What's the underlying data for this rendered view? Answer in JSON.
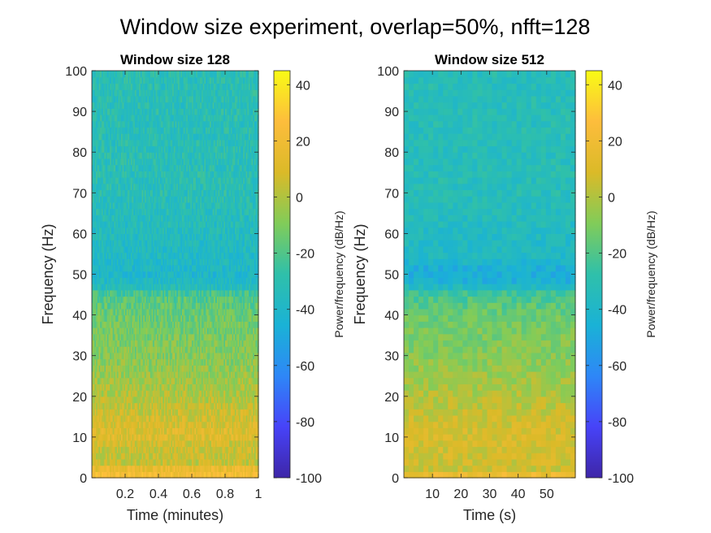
{
  "figure": {
    "title": "Window size experiment, overlap=50%, nfft=128"
  },
  "colormap": {
    "name": "parula",
    "stops": [
      "#3e26a8",
      "#4743f8",
      "#2e87f7",
      "#1ab2d6",
      "#2fc0aa",
      "#81cc59",
      "#dbba28",
      "#fdbd3c",
      "#f9fb15"
    ]
  },
  "chart_data": [
    {
      "type": "heatmap",
      "title": "Window size 128",
      "xlabel": "Time (minutes)",
      "ylabel": "Frequency (Hz)",
      "xlim": [
        0,
        1
      ],
      "ylim": [
        0,
        100
      ],
      "xticks": [
        0.2,
        0.4,
        0.6,
        0.8,
        1
      ],
      "xtick_labels": [
        "0.2",
        "0.4",
        "0.6",
        "0.8",
        "1"
      ],
      "yticks": [
        0,
        10,
        20,
        30,
        40,
        50,
        60,
        70,
        80,
        90,
        100
      ],
      "ytick_labels": [
        "0",
        "10",
        "20",
        "30",
        "40",
        "50",
        "60",
        "70",
        "80",
        "90",
        "100"
      ],
      "grid": false,
      "colorbar": {
        "label": "Power/frequency (dB/Hz)",
        "limits": [
          -100,
          45
        ],
        "ticks": [
          40,
          20,
          0,
          -20,
          -40,
          -60,
          -80,
          -100
        ],
        "tick_labels": [
          "40",
          "20",
          "0",
          "-20",
          "-40",
          "-60",
          "-80",
          "-100"
        ]
      },
      "time_bins": 120,
      "frequency_bins": 65,
      "power_profile_db": [
        {
          "frequency_hz": 0,
          "power_db": 22
        },
        {
          "frequency_hz": 2,
          "power_db": 22
        },
        {
          "frequency_hz": 3,
          "power_db": 4
        },
        {
          "frequency_hz": 8,
          "power_db": 5
        },
        {
          "frequency_hz": 10,
          "power_db": 12
        },
        {
          "frequency_hz": 14,
          "power_db": 8
        },
        {
          "frequency_hz": 20,
          "power_db": 0
        },
        {
          "frequency_hz": 30,
          "power_db": -9
        },
        {
          "frequency_hz": 40,
          "power_db": -14
        },
        {
          "frequency_hz": 45,
          "power_db": -20
        },
        {
          "frequency_hz": 47,
          "power_db": -35
        },
        {
          "frequency_hz": 50,
          "power_db": -40
        },
        {
          "frequency_hz": 55,
          "power_db": -37
        },
        {
          "frequency_hz": 70,
          "power_db": -32
        },
        {
          "frequency_hz": 100,
          "power_db": -32
        }
      ]
    },
    {
      "type": "heatmap",
      "title": "Window size 512",
      "xlabel": "Time (s)",
      "ylabel": "Frequency (Hz)",
      "xlim": [
        0,
        60
      ],
      "ylim": [
        0,
        100
      ],
      "xticks": [
        10,
        20,
        30,
        40,
        50
      ],
      "xtick_labels": [
        "10",
        "20",
        "30",
        "40",
        "50"
      ],
      "yticks": [
        0,
        10,
        20,
        30,
        40,
        50,
        60,
        70,
        80,
        90,
        100
      ],
      "ytick_labels": [
        "0",
        "10",
        "20",
        "30",
        "40",
        "50",
        "60",
        "70",
        "80",
        "90",
        "100"
      ],
      "grid": false,
      "colorbar": {
        "label": "Power/frequency (dB/Hz)",
        "limits": [
          -100,
          45
        ],
        "ticks": [
          40,
          20,
          0,
          -20,
          -40,
          -60,
          -80,
          -100
        ],
        "tick_labels": [
          "40",
          "20",
          "0",
          "-20",
          "-40",
          "-60",
          "-80",
          "-100"
        ]
      },
      "time_bins": 35,
      "frequency_bins": 65,
      "power_profile_db": [
        {
          "frequency_hz": 0,
          "power_db": 18
        },
        {
          "frequency_hz": 1,
          "power_db": 18
        },
        {
          "frequency_hz": 2,
          "power_db": 6
        },
        {
          "frequency_hz": 10,
          "power_db": 8
        },
        {
          "frequency_hz": 13,
          "power_db": 7
        },
        {
          "frequency_hz": 20,
          "power_db": 0
        },
        {
          "frequency_hz": 30,
          "power_db": -8
        },
        {
          "frequency_hz": 40,
          "power_db": -14
        },
        {
          "frequency_hz": 45,
          "power_db": -22
        },
        {
          "frequency_hz": 48,
          "power_db": -45
        },
        {
          "frequency_hz": 51,
          "power_db": -47
        },
        {
          "frequency_hz": 54,
          "power_db": -38
        },
        {
          "frequency_hz": 70,
          "power_db": -33
        },
        {
          "frequency_hz": 100,
          "power_db": -33
        }
      ]
    }
  ]
}
